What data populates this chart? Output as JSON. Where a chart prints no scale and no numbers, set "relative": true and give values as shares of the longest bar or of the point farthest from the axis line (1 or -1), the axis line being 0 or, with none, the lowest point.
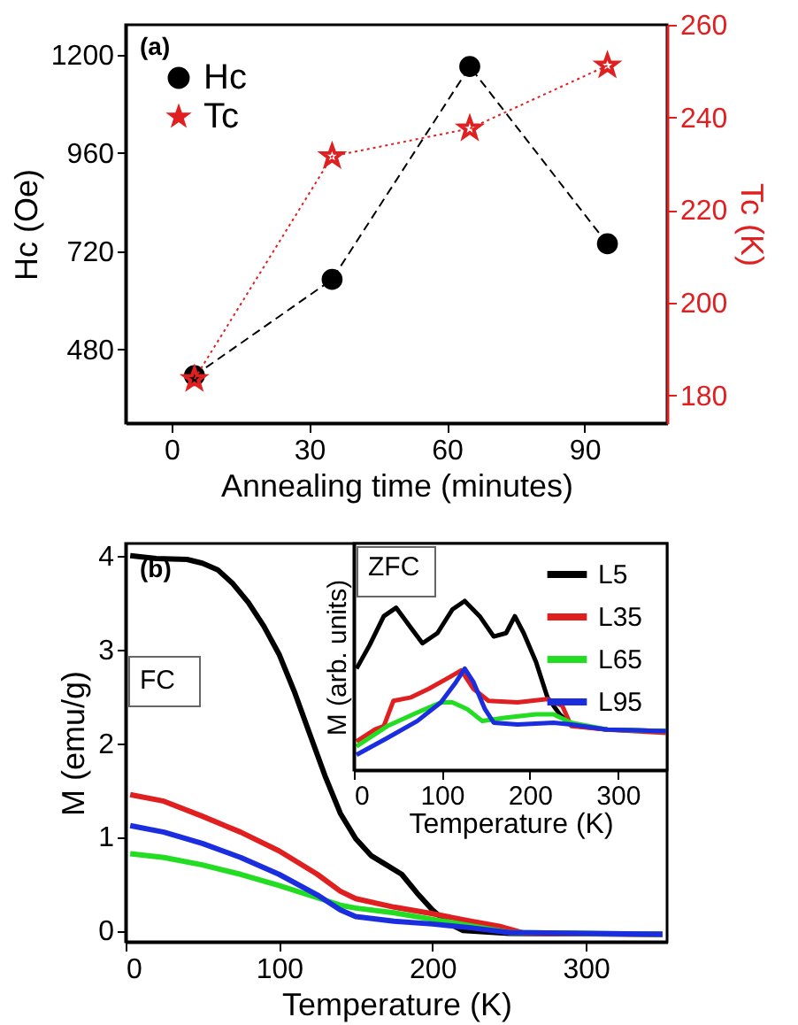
{
  "chart_data": [
    {
      "type": "line",
      "xlabel": "Annealing time (minutes)",
      "ylabel": "Hc (Oe)",
      "y2label": "Tc (K)",
      "annotations": [
        "(a)"
      ],
      "x": [
        5,
        35,
        65,
        95
      ],
      "xlim": [
        -10,
        108
      ],
      "xticks": [
        0,
        30,
        60,
        90
      ],
      "ylim": [
        300,
        1273
      ],
      "yticks": [
        480,
        720,
        960,
        1200
      ],
      "y2lim": [
        174,
        260
      ],
      "y2ticks": [
        180,
        200,
        220,
        240,
        260
      ],
      "grid": false,
      "legend": "top left",
      "series": [
        {
          "name": "Hc",
          "color": "#000000",
          "marker": "circle",
          "line_style": "dashed",
          "values": [
            416,
            651,
            1171,
            738
          ]
        },
        {
          "name": "Tc",
          "color": "#e02020",
          "marker": "star",
          "line_style": "dotted",
          "axis": "y2",
          "values": [
            183.5,
            231.6,
            237.6,
            251.2
          ]
        }
      ]
    },
    {
      "type": "line",
      "xlabel": "Temperature (K)",
      "ylabel": "M (emu/g)",
      "annotations": [
        "(b)",
        "FC"
      ],
      "xlim": [
        0,
        353
      ],
      "xticks": [
        0,
        100,
        200,
        300
      ],
      "ylim": [
        -0.12,
        4.13
      ],
      "yticks": [
        0,
        1,
        2,
        3,
        4
      ],
      "grid": false,
      "legend": false,
      "series": [
        {
          "color": "#000000",
          "x": [
            3,
            20,
            40,
            50,
            60,
            70,
            80,
            90,
            100,
            110,
            120,
            130,
            140,
            150,
            160,
            170,
            180,
            190,
            200,
            210,
            220,
            250,
            350
          ],
          "values": [
            4.0,
            3.97,
            3.96,
            3.92,
            3.85,
            3.7,
            3.5,
            3.25,
            2.95,
            2.55,
            2.1,
            1.65,
            1.25,
            0.98,
            0.8,
            0.7,
            0.6,
            0.4,
            0.22,
            0.08,
            0.0,
            -0.03,
            -0.04
          ]
        },
        {
          "color": "#e02020",
          "x": [
            3,
            25,
            50,
            75,
            100,
            125,
            140,
            150,
            175,
            200,
            225,
            245,
            260,
            350
          ],
          "values": [
            1.45,
            1.38,
            1.22,
            1.05,
            0.85,
            0.6,
            0.42,
            0.34,
            0.25,
            0.18,
            0.1,
            0.04,
            -0.03,
            -0.04
          ]
        },
        {
          "color": "#22dd22",
          "x": [
            3,
            25,
            50,
            75,
            100,
            125,
            140,
            150,
            175,
            200,
            225,
            250,
            350
          ],
          "values": [
            0.82,
            0.78,
            0.7,
            0.6,
            0.48,
            0.35,
            0.27,
            0.24,
            0.19,
            0.12,
            0.05,
            -0.02,
            -0.04
          ]
        },
        {
          "color": "#1a2ee0",
          "x": [
            3,
            25,
            50,
            75,
            100,
            125,
            140,
            150,
            175,
            200,
            225,
            250,
            350
          ],
          "values": [
            1.12,
            1.05,
            0.93,
            0.78,
            0.6,
            0.38,
            0.22,
            0.15,
            0.1,
            0.07,
            0.03,
            -0.02,
            -0.04
          ]
        }
      ]
    },
    {
      "type": "line",
      "xlabel": "Temperature (K)",
      "ylabel": "M (arb. units)",
      "relative": true,
      "annotations": [
        "ZFC"
      ],
      "xlim": [
        0,
        356
      ],
      "xticks": [
        0,
        100,
        200,
        300
      ],
      "grid": false,
      "legend": "top right",
      "series": [
        {
          "name": "L5",
          "color": "#000000",
          "x": [
            3,
            18,
            34,
            48,
            65,
            78,
            95,
            112,
            126,
            143,
            159,
            173,
            183,
            193,
            207,
            220,
            234,
            244,
            254,
            288,
            355
          ],
          "values": [
            0.6,
            0.74,
            0.91,
            0.96,
            0.84,
            0.75,
            0.81,
            0.95,
            1.0,
            0.91,
            0.79,
            0.81,
            0.91,
            0.81,
            0.64,
            0.43,
            0.33,
            0.28,
            0.26,
            0.24,
            0.23
          ]
        },
        {
          "name": "L35",
          "color": "#e02020",
          "x": [
            3,
            24,
            34,
            45,
            65,
            85,
            109,
            122,
            136,
            153,
            186,
            220,
            237,
            247,
            288,
            355
          ],
          "values": [
            0.17,
            0.24,
            0.26,
            0.41,
            0.43,
            0.48,
            0.55,
            0.59,
            0.48,
            0.41,
            0.4,
            0.42,
            0.38,
            0.26,
            0.24,
            0.22
          ]
        },
        {
          "name": "L65",
          "color": "#22dd22",
          "x": [
            3,
            38,
            72,
            99,
            112,
            129,
            146,
            173,
            207,
            227,
            247,
            288,
            355
          ],
          "values": [
            0.14,
            0.26,
            0.34,
            0.4,
            0.4,
            0.36,
            0.29,
            0.31,
            0.33,
            0.33,
            0.28,
            0.24,
            0.23
          ]
        },
        {
          "name": "L95",
          "color": "#1a2ee0",
          "x": [
            3,
            38,
            72,
            99,
            116,
            126,
            136,
            149,
            159,
            186,
            227,
            247,
            288,
            355
          ],
          "values": [
            0.09,
            0.19,
            0.29,
            0.4,
            0.52,
            0.6,
            0.52,
            0.36,
            0.28,
            0.27,
            0.28,
            0.27,
            0.24,
            0.23
          ]
        }
      ]
    }
  ]
}
